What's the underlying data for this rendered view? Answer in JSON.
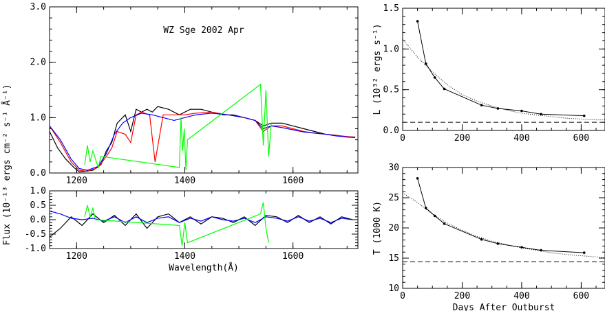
{
  "chart_data": [
    {
      "type": "line",
      "panel": "spectrum",
      "title": "WZ Sge 2002 Apr",
      "ylabel": "Flux (10⁻¹³ ergs cm⁻² s⁻¹ Å⁻¹)",
      "xlim": [
        1150,
        1720
      ],
      "ylim": [
        0,
        3.0
      ],
      "xticks": [
        "1200",
        "1400",
        "1600"
      ],
      "yticks": [
        "0.0",
        "1.0",
        "2.0",
        "3.0"
      ],
      "series": [
        {
          "color": "#000000",
          "x": [
            1150,
            1165,
            1180,
            1195,
            1205,
            1215,
            1230,
            1245,
            1255,
            1265,
            1275,
            1290,
            1300,
            1310,
            1320,
            1330,
            1340,
            1350,
            1370,
            1390,
            1410,
            1430,
            1450,
            1470,
            1490,
            1510,
            1530,
            1545,
            1560,
            1580,
            1600,
            1620,
            1640,
            1660,
            1680,
            1700,
            1715
          ],
          "y": [
            0.75,
            0.45,
            0.25,
            0.1,
            0.02,
            0.03,
            0.05,
            0.15,
            0.4,
            0.55,
            0.9,
            1.05,
            0.75,
            1.15,
            1.1,
            1.15,
            1.1,
            1.2,
            1.15,
            1.05,
            1.15,
            1.15,
            1.1,
            1.05,
            1.05,
            1.0,
            0.95,
            0.85,
            0.9,
            0.9,
            0.85,
            0.8,
            0.75,
            0.7,
            0.68,
            0.65,
            0.65
          ]
        },
        {
          "color": "#ff0000",
          "x": [
            1150,
            1170,
            1190,
            1205,
            1220,
            1240,
            1255,
            1265,
            1275,
            1290,
            1300,
            1310,
            1320,
            1335,
            1345,
            1360,
            1380,
            1400,
            1420,
            1450,
            1480,
            1510,
            1530,
            1545,
            1560,
            1580,
            1600,
            1620,
            1640,
            1660,
            1680,
            1700,
            1715
          ],
          "y": [
            0.85,
            0.55,
            0.2,
            0.05,
            0.03,
            0.1,
            0.3,
            0.45,
            0.75,
            0.7,
            0.55,
            1.05,
            1.1,
            1.05,
            0.2,
            1.05,
            1.05,
            1.05,
            1.08,
            1.1,
            1.05,
            1.0,
            0.95,
            0.75,
            0.85,
            0.85,
            0.8,
            0.75,
            0.72,
            0.7,
            0.68,
            0.66,
            0.65
          ]
        },
        {
          "color": "#0000ff",
          "x": [
            1150,
            1170,
            1190,
            1205,
            1220,
            1240,
            1255,
            1270,
            1285,
            1300,
            1320,
            1340,
            1360,
            1380,
            1400,
            1420,
            1450,
            1480,
            1510,
            1530,
            1545,
            1560,
            1580,
            1600,
            1620,
            1640,
            1660,
            1680,
            1700,
            1715
          ],
          "y": [
            0.85,
            0.6,
            0.25,
            0.08,
            0.05,
            0.12,
            0.35,
            0.7,
            0.9,
            1.0,
            1.08,
            1.05,
            1.0,
            0.95,
            1.0,
            1.05,
            1.08,
            1.05,
            1.0,
            0.95,
            0.8,
            0.85,
            0.82,
            0.78,
            0.74,
            0.72,
            0.7,
            0.67,
            0.65,
            0.64
          ]
        },
        {
          "color": "#00ff00",
          "x": [
            1215,
            1220,
            1225,
            1230,
            1235,
            1240,
            1245,
            1390,
            1393,
            1396,
            1399,
            1402,
            1405,
            1540,
            1545,
            1550,
            1555,
            1560
          ],
          "y": [
            0.15,
            0.5,
            0.2,
            0.4,
            0.25,
            0.1,
            0.3,
            0.1,
            1.0,
            0.4,
            0.8,
            0.05,
            0.6,
            1.6,
            0.5,
            1.5,
            0.3,
            0.9
          ]
        }
      ]
    },
    {
      "type": "line",
      "panel": "residuals",
      "xlabel": "Wavelength(Å)",
      "xlim": [
        1150,
        1720
      ],
      "ylim": [
        -1.0,
        1.0
      ],
      "xticks": [
        "1200",
        "1400",
        "1600"
      ],
      "yticks": [
        "-1.0",
        "-0.5",
        "0.0",
        "0.5",
        "1.0"
      ],
      "series": [
        {
          "color": "#000000",
          "x": [
            1150,
            1170,
            1190,
            1210,
            1230,
            1250,
            1270,
            1290,
            1310,
            1330,
            1350,
            1370,
            1390,
            1410,
            1430,
            1450,
            1470,
            1490,
            1510,
            1530,
            1550,
            1570,
            1590,
            1610,
            1630,
            1650,
            1670,
            1690,
            1710
          ],
          "y": [
            -0.6,
            -0.3,
            0.1,
            -0.2,
            0.2,
            -0.1,
            0.15,
            -0.2,
            0.2,
            -0.3,
            0.1,
            0.2,
            -0.1,
            0.1,
            -0.15,
            0.1,
            0.05,
            -0.1,
            0.1,
            -0.2,
            0.15,
            0.1,
            -0.1,
            0.15,
            -0.1,
            0.1,
            -0.15,
            0.1,
            0.0
          ]
        },
        {
          "color": "#0000ff",
          "x": [
            1150,
            1170,
            1190,
            1210,
            1230,
            1250,
            1270,
            1290,
            1310,
            1330,
            1350,
            1370,
            1390,
            1410,
            1430,
            1450,
            1470,
            1490,
            1510,
            1530,
            1550,
            1570,
            1590,
            1610,
            1630,
            1650,
            1670,
            1690,
            1710
          ],
          "y": [
            0.3,
            0.2,
            0.05,
            0.0,
            0.05,
            -0.05,
            0.1,
            -0.1,
            0.1,
            -0.1,
            0.05,
            0.1,
            -0.1,
            0.05,
            -0.05,
            0.1,
            0.0,
            -0.05,
            0.05,
            -0.1,
            0.1,
            0.05,
            -0.05,
            0.1,
            -0.05,
            0.05,
            -0.1,
            0.05,
            0.0
          ]
        },
        {
          "color": "#00ff00",
          "x": [
            1215,
            1220,
            1225,
            1230,
            1235,
            1390,
            1395,
            1400,
            1405,
            1540,
            1545,
            1550,
            1555
          ],
          "y": [
            0.1,
            0.5,
            0.1,
            0.4,
            0.0,
            -0.2,
            -0.9,
            -0.1,
            -0.8,
            0.2,
            0.6,
            -0.3,
            -0.8
          ]
        }
      ]
    },
    {
      "type": "line",
      "panel": "luminosity",
      "ylabel": "L (10³² ergs s⁻¹)",
      "xlim": [
        0,
        680
      ],
      "ylim": [
        0,
        1.5
      ],
      "xticks": [
        "0",
        "200",
        "400",
        "600"
      ],
      "yticks": [
        "0.0",
        "0.5",
        "1.0",
        "1.5"
      ],
      "data": {
        "x": [
          50,
          78,
          108,
          140,
          265,
          320,
          400,
          465,
          610
        ],
        "y": [
          1.34,
          0.82,
          0.65,
          0.51,
          0.31,
          0.27,
          0.24,
          0.2,
          0.18
        ]
      },
      "fit": {
        "x": [
          0,
          50,
          100,
          150,
          200,
          250,
          300,
          350,
          400,
          450,
          500,
          550,
          600,
          650,
          680
        ],
        "y": [
          1.12,
          0.9,
          0.72,
          0.56,
          0.44,
          0.36,
          0.3,
          0.25,
          0.21,
          0.19,
          0.17,
          0.15,
          0.14,
          0.13,
          0.13
        ]
      },
      "asymptote": 0.1
    },
    {
      "type": "line",
      "panel": "temperature",
      "xlabel": "Days After Outburst",
      "ylabel": "T (1000 K)",
      "xlim": [
        0,
        680
      ],
      "ylim": [
        10,
        30
      ],
      "xticks": [
        "0",
        "200",
        "400",
        "600"
      ],
      "yticks": [
        "10",
        "15",
        "20",
        "25",
        "30"
      ],
      "data": {
        "x": [
          50,
          78,
          108,
          140,
          265,
          320,
          400,
          465,
          610
        ],
        "y": [
          28.2,
          23.3,
          22.0,
          20.7,
          18.1,
          17.4,
          16.8,
          16.3,
          15.9
        ]
      },
      "fit": {
        "x": [
          0,
          50,
          100,
          150,
          200,
          250,
          300,
          350,
          400,
          450,
          500,
          550,
          600,
          650,
          680
        ],
        "y": [
          25.8,
          24.2,
          22.3,
          20.8,
          19.6,
          18.6,
          17.8,
          17.2,
          16.7,
          16.3,
          15.9,
          15.6,
          15.4,
          15.2,
          15.1
        ]
      },
      "asymptote": 14.4
    }
  ]
}
